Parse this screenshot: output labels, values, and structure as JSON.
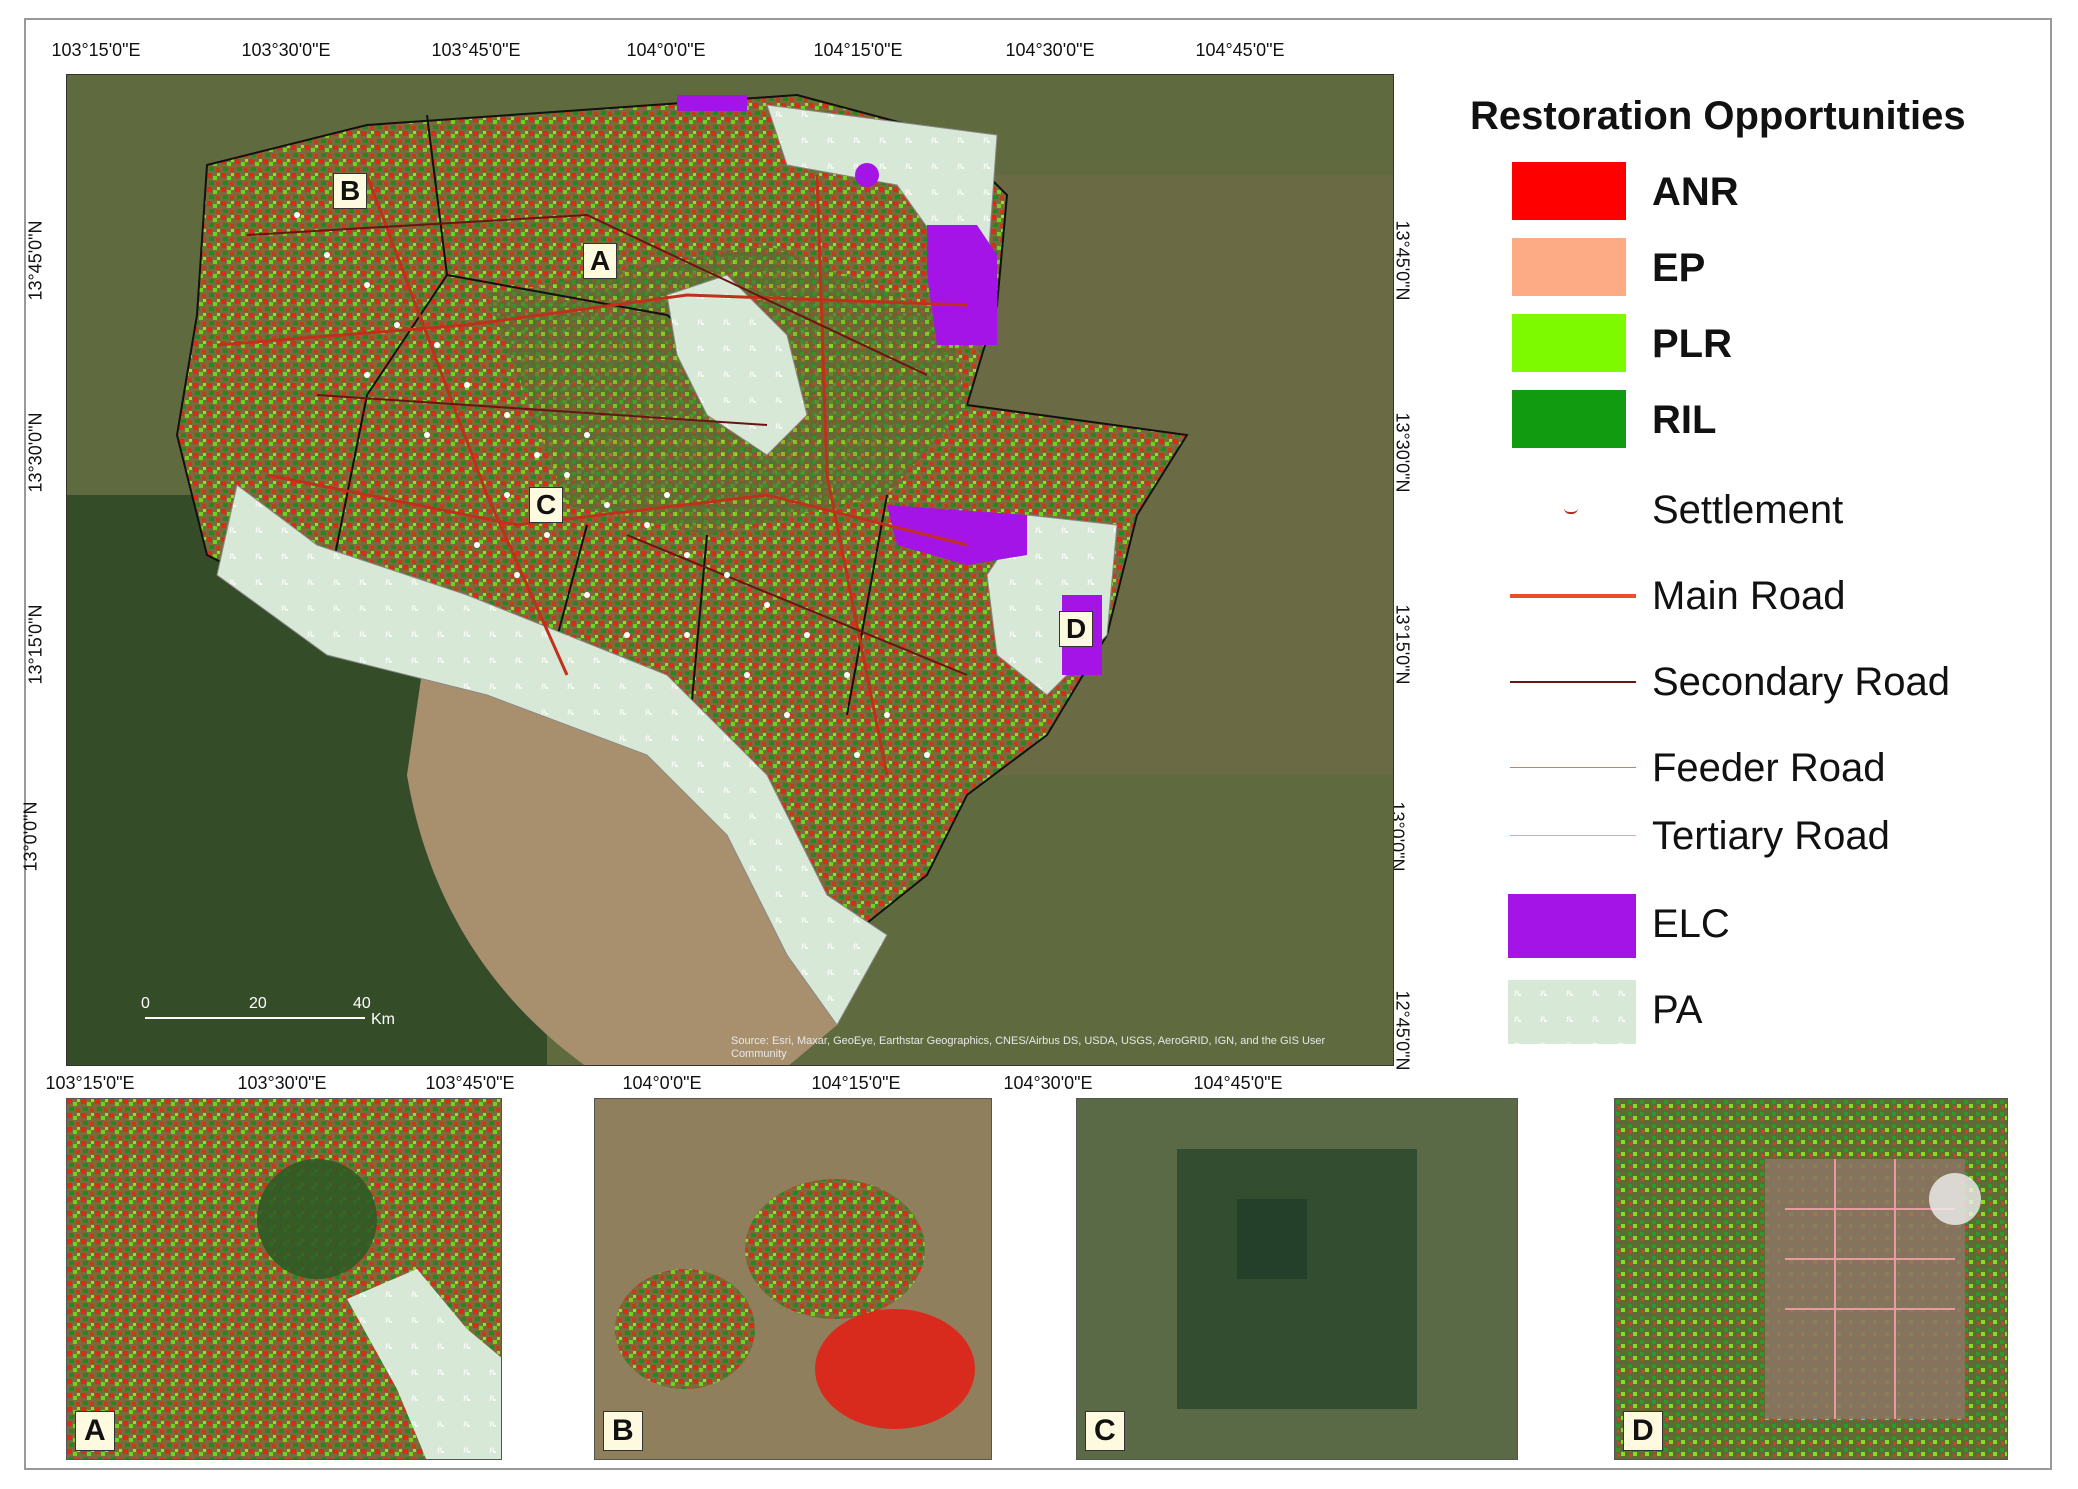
{
  "ticks": {
    "top": [
      "103°15'0\"E",
      "103°30'0\"E",
      "103°45'0\"E",
      "104°0'0\"E",
      "104°15'0\"E",
      "104°30'0\"E",
      "104°45'0\"E"
    ],
    "bottom": [
      "103°15'0\"E",
      "103°30'0\"E",
      "103°45'0\"E",
      "104°0'0\"E",
      "104°15'0\"E",
      "104°30'0\"E",
      "104°45'0\"E"
    ],
    "left": [
      "13°45'0\"N",
      "13°30'0\"N",
      "13°15'0\"N",
      "13°0'0\"N"
    ],
    "right": [
      "13°45'0\"N",
      "13°30'0\"N",
      "13°15'0\"N",
      "13°0'0\"N",
      "12°45'0\"N"
    ]
  },
  "map_labels": {
    "a": "A",
    "b": "B",
    "c": "C",
    "d": "D"
  },
  "scale": {
    "zero": "0",
    "twenty": "20",
    "forty": "40",
    "unit": "Km"
  },
  "attribution": "Source: Esri, Maxar, GeoEye, Earthstar Geographics, CNES/Airbus DS, USDA, USGS, AeroGRID, IGN, and the GIS User Community",
  "legend": {
    "title": "Restoration Opportunities",
    "items": [
      {
        "label": "ANR",
        "color": "#ff0000"
      },
      {
        "label": "EP",
        "color": "#fcab84"
      },
      {
        "label": "PLR",
        "color": "#7dfa00"
      },
      {
        "label": "RIL",
        "color": "#119b11"
      },
      {
        "label": "Settlement",
        "color": "#b03020"
      },
      {
        "label": "Main Road",
        "color": "#e8502a"
      },
      {
        "label": "Secondary Road",
        "color": "#6b1414"
      },
      {
        "label": "Feeder Road",
        "color": "#ef6b6b"
      },
      {
        "label": "Tertiary Road",
        "color": "#f0a0b8"
      },
      {
        "label": "ELC",
        "color": "#a414e6"
      },
      {
        "label": "PA",
        "color": "#d8e8d6"
      }
    ]
  },
  "insets": [
    {
      "label": "A"
    },
    {
      "label": "B"
    },
    {
      "label": "C"
    },
    {
      "label": "D"
    }
  ]
}
